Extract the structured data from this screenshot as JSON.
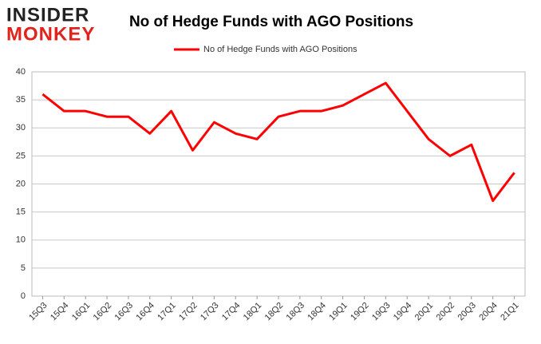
{
  "logo": {
    "line1": "INSIDER",
    "line2": "MONKEY"
  },
  "chart_data": {
    "type": "line",
    "title": "No of Hedge Funds with AGO Positions",
    "categories": [
      "15Q3",
      "15Q4",
      "16Q1",
      "16Q2",
      "16Q3",
      "16Q4",
      "17Q1",
      "17Q2",
      "17Q3",
      "17Q4",
      "18Q1",
      "18Q2",
      "18Q3",
      "18Q4",
      "19Q1",
      "19Q2",
      "19Q3",
      "19Q4",
      "20Q1",
      "20Q2",
      "20Q3",
      "20Q4",
      "21Q1"
    ],
    "series": [
      {
        "name": "No of Hedge Funds with AGO Positions",
        "color": "#ff0000",
        "values": [
          36,
          33,
          33,
          32,
          32,
          29,
          33,
          26,
          31,
          29,
          28,
          32,
          33,
          33,
          34,
          36,
          38,
          33,
          28,
          25,
          27,
          17,
          22
        ]
      }
    ],
    "ylim": [
      0,
      40
    ],
    "yticks": [
      0,
      5,
      10,
      15,
      20,
      25,
      30,
      35,
      40
    ],
    "grid": true,
    "legend": "top"
  }
}
